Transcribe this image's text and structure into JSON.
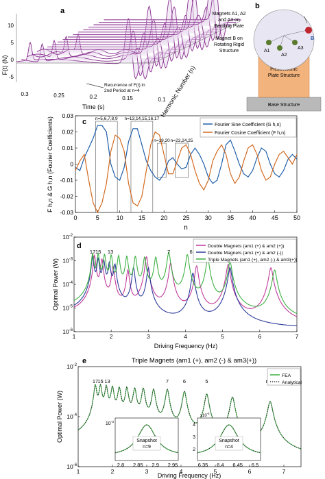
{
  "panel_labels": {
    "a": "a",
    "b": "b",
    "c": "c",
    "d": "d",
    "e": "e"
  },
  "panel_a": {
    "ylabel": "F(t) (N)",
    "xlabel": "Time (s)",
    "zlabel": "Harmonic Number (n)",
    "yticks": [
      "10",
      "5",
      "0",
      "-5"
    ],
    "xticks": [
      "0.3",
      "0.25",
      "0.2",
      "0.15",
      "0.1"
    ],
    "annotation": [
      "Recurrence of F(t) in",
      "2nd Period at n=4"
    ]
  },
  "panel_b": {
    "label_magnets_a": [
      "Magnets A1, A2",
      "and A3 on",
      "Bending Plate"
    ],
    "label_magnet_b": [
      "Magnet B on",
      "Rotating Rigid",
      "Structure"
    ],
    "label_piezo": [
      "Piezoelectric",
      "Plate Structure"
    ],
    "label_base": "Base Structure",
    "magnet_names": [
      "A1",
      "A2",
      "A3",
      "B"
    ]
  },
  "chart_data": [
    {
      "id": "c",
      "type": "line",
      "xlabel": "n",
      "ylabel": "F h,n & G h,n (Fourier Coefficients)",
      "xlim": [
        0,
        50
      ],
      "ylim": [
        -0.03,
        0.03
      ],
      "xticks": [
        0,
        5,
        10,
        15,
        20,
        25,
        30,
        35,
        40,
        45,
        50
      ],
      "yticks": [
        -0.03,
        -0.02,
        -0.01,
        0,
        0.01,
        0.02,
        0.03
      ],
      "legend_position": "top-right",
      "series": [
        {
          "name": "Fourier Sine Coefficient (G h,n)",
          "color": "#1f5fa8",
          "x": [
            0,
            1,
            2,
            3,
            4,
            5,
            6,
            7,
            8,
            9,
            10,
            11,
            12,
            13,
            14,
            15,
            16,
            17,
            18,
            19,
            20,
            21,
            22,
            23,
            24,
            25,
            26,
            27,
            28,
            29,
            30,
            31,
            32,
            33,
            34,
            35,
            36,
            37,
            38,
            39,
            40,
            41,
            42,
            43,
            44,
            45,
            46,
            47,
            48,
            49,
            50
          ],
          "y": [
            -0.002,
            -0.004,
            0.004,
            0.01,
            0.016,
            0.024,
            0.024,
            0.02,
            0.0,
            -0.008,
            -0.01,
            -0.002,
            0.014,
            0.022,
            0.022,
            0.012,
            0.002,
            -0.004,
            -0.008,
            -0.01,
            -0.006,
            0.002,
            0.004,
            0.0,
            -0.003,
            -0.002,
            0.006,
            0.01,
            0.006,
            0.0,
            -0.008,
            -0.012,
            -0.01,
            0.0,
            0.012,
            0.015,
            0.008,
            0.0,
            -0.006,
            -0.008,
            -0.004,
            0.004,
            0.01,
            0.008,
            0.0,
            -0.006,
            -0.008,
            -0.004,
            0.003,
            0.006,
            0.003
          ]
        },
        {
          "name": "Fourier Cosine Coefficient (F h,n)",
          "color": "#d2691e",
          "x": [
            0,
            1,
            2,
            3,
            4,
            5,
            6,
            7,
            8,
            9,
            10,
            11,
            12,
            13,
            14,
            15,
            16,
            17,
            18,
            19,
            20,
            21,
            22,
            23,
            24,
            25,
            26,
            27,
            28,
            29,
            30,
            31,
            32,
            33,
            34,
            35,
            36,
            37,
            38,
            39,
            40,
            41,
            42,
            43,
            44,
            45,
            46,
            47,
            48,
            49,
            50
          ],
          "y": [
            -0.004,
            0.002,
            0.006,
            -0.01,
            -0.024,
            -0.03,
            -0.024,
            -0.012,
            0.008,
            0.018,
            0.016,
            0.008,
            -0.012,
            -0.024,
            -0.026,
            -0.02,
            -0.004,
            0.012,
            0.02,
            0.018,
            0.006,
            -0.006,
            -0.006,
            0.002,
            0.01,
            0.012,
            0.006,
            -0.004,
            -0.012,
            -0.016,
            -0.01,
            0.002,
            0.008,
            0.012,
            0.006,
            -0.006,
            -0.012,
            -0.008,
            0.002,
            0.01,
            0.012,
            0.006,
            -0.004,
            -0.01,
            -0.008,
            0.0,
            0.006,
            0.008,
            0.004,
            0.0,
            0.006
          ]
        }
      ],
      "annotations": [
        {
          "text": "n=5,6,7,8,9",
          "x_range": [
            5,
            9
          ]
        },
        {
          "text": "n=13,14,15,16,17",
          "x_range": [
            13,
            17
          ]
        },
        {
          "text": "n=19,20",
          "x_range": [
            19,
            20
          ]
        },
        {
          "text": "n=23,24,25",
          "x_range": [
            23,
            25
          ]
        }
      ]
    },
    {
      "id": "d",
      "type": "line",
      "xlabel": "Driving Frequency (Hz)",
      "ylabel": "Optimal Power (W)",
      "yscale": "log",
      "xlim": [
        1,
        7
      ],
      "ylim": [
        1e-06,
        0.01
      ],
      "xticks": [
        1,
        2,
        3,
        4,
        5,
        6,
        7
      ],
      "yticks": [
        "10^-6",
        "10^-5",
        "10^-4",
        "10^-3",
        "10^-2"
      ],
      "legend_position": "top-right",
      "series": [
        {
          "name": "Double Magnets (am1 (+) & am2 (+))",
          "color": "#c0399a",
          "peaks": [
            [
              1.55,
              0.0017
            ],
            [
              1.75,
              0.0012
            ],
            [
              2.05,
              0.0006
            ],
            [
              2.45,
              0.0004
            ],
            [
              2.95,
              0.0015
            ],
            [
              3.6,
              0.0008
            ],
            [
              4.3,
              0.0006
            ],
            [
              5.15,
              0.0007
            ],
            [
              6.3,
              0.0005
            ]
          ]
        },
        {
          "name": "Double Magnets (am1 (+) & am2 (-))",
          "color": "#2b3a9a",
          "peaks": [
            [
              1.5,
              0.0015
            ],
            [
              1.65,
              0.0012
            ],
            [
              1.8,
              0.001
            ],
            [
              1.95,
              0.0008
            ],
            [
              2.1,
              0.0007
            ],
            [
              2.6,
              0.0005
            ],
            [
              3.0,
              0.0005
            ],
            [
              4.2,
              0.0003
            ],
            [
              5.2,
              0.0005
            ]
          ]
        },
        {
          "name": "Triple Magnets (am1 (+), am2 (-) & am3(+))",
          "color": "#3cb043",
          "peaks": [
            [
              1.5,
              0.002
            ],
            [
              1.65,
              0.0019
            ],
            [
              1.82,
              0.0018
            ],
            [
              2.0,
              0.0017
            ],
            [
              2.2,
              0.0016
            ],
            [
              2.42,
              0.0015
            ],
            [
              2.65,
              0.0015
            ],
            [
              2.9,
              0.0014
            ],
            [
              3.2,
              0.0014
            ],
            [
              3.55,
              0.0023
            ],
            [
              4.05,
              0.0018
            ],
            [
              4.6,
              0.0012
            ],
            [
              5.2,
              0.0009
            ],
            [
              6.4,
              0.0004
            ]
          ]
        }
      ],
      "peak_labels": [
        {
          "text": "17",
          "x": 1.5
        },
        {
          "text": "15",
          "x": 1.65
        },
        {
          "text": "13",
          "x": 1.98
        },
        {
          "text": "7",
          "x": 3.55
        },
        {
          "text": "6",
          "x": 4.15
        },
        {
          "text": "5",
          "x": 5.2
        },
        {
          "text": "n=4",
          "x": 6.4
        }
      ]
    },
    {
      "id": "e",
      "type": "line",
      "title": "Triple Magnets (am1 (+), am2 (-) & am3(+))",
      "xlabel": "Driving Frequency (Hz)",
      "ylabel": "Optimal Power (W)",
      "yscale": "log",
      "xlim": [
        1,
        7.5
      ],
      "ylim": [
        1e-06,
        0.01
      ],
      "xticks": [
        1,
        2,
        3,
        4,
        5,
        6,
        7
      ],
      "yticks": [
        "10^-6",
        "10^-4",
        "10^-2"
      ],
      "legend_position": "top-right",
      "series": [
        {
          "name": "FEA",
          "color": "#3cb043",
          "peaks": [
            [
              1.5,
              0.0018
            ],
            [
              1.65,
              0.0017
            ],
            [
              1.82,
              0.0016
            ],
            [
              2.0,
              0.0015
            ],
            [
              2.2,
              0.0014
            ],
            [
              2.42,
              0.0014
            ],
            [
              2.65,
              0.0013
            ],
            [
              2.9,
              0.0013
            ],
            [
              3.2,
              0.0012
            ],
            [
              3.6,
              0.0012
            ],
            [
              4.1,
              0.001
            ],
            [
              4.75,
              0.0008
            ],
            [
              5.5,
              0.0006
            ],
            [
              6.6,
              0.0004
            ]
          ]
        },
        {
          "name": "Analytical",
          "color": "#333333",
          "style": "dotted",
          "peaks": [
            [
              1.5,
              0.0018
            ],
            [
              1.65,
              0.0017
            ],
            [
              1.82,
              0.0016
            ],
            [
              2.0,
              0.0015
            ],
            [
              2.2,
              0.0014
            ],
            [
              2.42,
              0.0014
            ],
            [
              2.65,
              0.0013
            ],
            [
              2.9,
              0.0013
            ],
            [
              3.2,
              0.0012
            ],
            [
              3.6,
              0.0012
            ],
            [
              4.1,
              0.001
            ],
            [
              4.75,
              0.0008
            ],
            [
              5.5,
              0.0006
            ],
            [
              6.6,
              0.0004
            ]
          ]
        }
      ],
      "peak_labels": [
        {
          "text": "17",
          "x": 1.5
        },
        {
          "text": "15",
          "x": 1.65
        },
        {
          "text": "13",
          "x": 1.85
        },
        {
          "text": "7",
          "x": 3.6
        },
        {
          "text": "6",
          "x": 4.1
        },
        {
          "text": "5",
          "x": 4.75
        },
        {
          "text": "n=4",
          "x": 6.6
        }
      ],
      "insets": [
        {
          "title": "Snapshot",
          "subtitle": "n=9",
          "xticks": [
            "2.8",
            "2.85",
            "2.9",
            "2.95"
          ],
          "yticks": [
            "10^-3"
          ],
          "xlim": [
            2.77,
            2.98
          ]
        },
        {
          "title": "Snapshot",
          "subtitle": "n=4",
          "xticks": [
            "6.35",
            "6.4",
            "6.45",
            "6.5"
          ],
          "yticks": [
            "4",
            "3",
            "2"
          ],
          "ylabel_mult": "x10^-4",
          "xlim": [
            6.33,
            6.53
          ],
          "ylim": [
            1.5,
            4.5
          ]
        }
      ]
    }
  ]
}
